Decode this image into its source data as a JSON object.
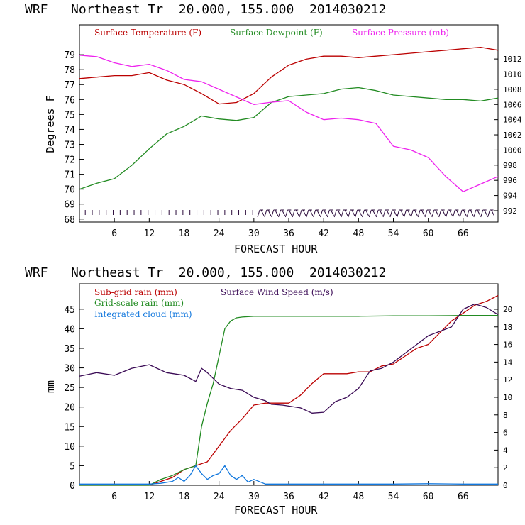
{
  "chart_data": [
    {
      "type": "line",
      "title": "WRF   Northeast Tr  20.000, 155.000  2014030212",
      "xlabel": "FORECAST HOUR",
      "ylabel": "Degrees F",
      "x_ticks": [
        6,
        12,
        18,
        24,
        30,
        36,
        42,
        48,
        54,
        60,
        66
      ],
      "xlim": [
        0,
        72
      ],
      "ylim": [
        67.8,
        81
      ],
      "y_ticks": [
        68,
        69,
        70,
        71,
        72,
        73,
        74,
        75,
        76,
        77,
        78,
        79
      ],
      "y2lim": [
        990.5,
        1016.5
      ],
      "y2_ticks": [
        992,
        994,
        996,
        998,
        1000,
        1002,
        1004,
        1006,
        1008,
        1010,
        1012
      ],
      "grid": false,
      "legend_position": "top",
      "wind_barbs_row": "bottom, at about 68.7 F",
      "series": [
        {
          "name": "Surface Temperature (F)",
          "color": "#bb0000",
          "axis": "left",
          "x": [
            0,
            3,
            6,
            9,
            12,
            15,
            18,
            21,
            24,
            27,
            30,
            33,
            36,
            39,
            42,
            45,
            48,
            51,
            54,
            57,
            60,
            63,
            66,
            69,
            72
          ],
          "y": [
            77.4,
            77.5,
            77.6,
            77.6,
            77.8,
            77.3,
            77.0,
            76.4,
            75.7,
            75.8,
            76.4,
            77.5,
            78.3,
            78.7,
            78.9,
            78.9,
            78.8,
            78.9,
            79.0,
            79.1,
            79.2,
            79.3,
            79.4,
            79.5,
            79.3
          ]
        },
        {
          "name": "Surface Dewpoint (F)",
          "color": "#228B22",
          "axis": "left",
          "x": [
            0,
            3,
            6,
            9,
            12,
            15,
            18,
            21,
            24,
            27,
            30,
            33,
            36,
            39,
            42,
            45,
            48,
            51,
            54,
            57,
            60,
            63,
            66,
            69,
            72
          ],
          "y": [
            70.0,
            70.4,
            70.7,
            71.6,
            72.7,
            73.7,
            74.2,
            74.9,
            74.7,
            74.6,
            74.8,
            75.8,
            76.2,
            76.3,
            76.4,
            76.7,
            76.8,
            76.6,
            76.3,
            76.2,
            76.1,
            76.0,
            76.0,
            75.9,
            76.1
          ]
        },
        {
          "name": "Surface Pressure (mb)",
          "color": "#ee22ee",
          "axis": "right",
          "x": [
            0,
            3,
            6,
            9,
            12,
            15,
            18,
            21,
            24,
            27,
            30,
            33,
            36,
            39,
            42,
            45,
            48,
            51,
            54,
            57,
            60,
            63,
            66,
            69,
            72
          ],
          "y": [
            1012.5,
            1012.3,
            1011.5,
            1011.0,
            1011.3,
            1010.5,
            1009.3,
            1009.0,
            1008.0,
            1007.0,
            1006.0,
            1006.3,
            1006.5,
            1005.0,
            1004.0,
            1004.2,
            1004.0,
            1003.5,
            1000.5,
            1000.0,
            999.0,
            996.5,
            994.5,
            995.5,
            996.5
          ]
        }
      ]
    },
    {
      "type": "line",
      "title": "WRF   Northeast Tr  20.000, 155.000  2014030212",
      "xlabel": "FORECAST HOUR",
      "ylabel": "mm",
      "x_ticks": [
        6,
        12,
        18,
        24,
        30,
        36,
        42,
        48,
        54,
        60,
        66
      ],
      "xlim": [
        0,
        72
      ],
      "ylim": [
        0,
        51.5
      ],
      "y_ticks": [
        0,
        5,
        10,
        15,
        20,
        25,
        30,
        35,
        40,
        45
      ],
      "y2lim": [
        0,
        22.9
      ],
      "y2_ticks": [
        0,
        2,
        4,
        6,
        8,
        10,
        12,
        14,
        16,
        18,
        20
      ],
      "grid": false,
      "legend_position": "top-left",
      "series": [
        {
          "name": "Sub-grid rain (mm)",
          "color": "#bb0000",
          "axis": "left",
          "x": [
            0,
            12,
            14,
            16,
            18,
            20,
            22,
            24,
            26,
            28,
            30,
            32,
            36,
            38,
            40,
            42,
            44,
            46,
            48,
            50,
            52,
            54,
            56,
            58,
            60,
            62,
            64,
            66,
            68,
            70,
            72
          ],
          "y": [
            0,
            0,
            1.0,
            2.0,
            4.0,
            5.0,
            6.0,
            10.0,
            14.0,
            17.0,
            20.5,
            21.0,
            21.0,
            23.0,
            26.0,
            28.5,
            28.5,
            28.5,
            29.0,
            29.0,
            30.5,
            31.0,
            33.0,
            35.0,
            36.0,
            39.0,
            42.0,
            44.0,
            46.0,
            47.0,
            48.5
          ]
        },
        {
          "name": "Grid-scale rain (mm)",
          "color": "#228B22",
          "axis": "left",
          "x": [
            0,
            12,
            14,
            16,
            18,
            19,
            20,
            21,
            22,
            23,
            24,
            25,
            26,
            27,
            28,
            30,
            32,
            36,
            42,
            48,
            54,
            60,
            66,
            72
          ],
          "y": [
            0,
            0,
            1.5,
            2.5,
            4.0,
            4.5,
            5.0,
            15.0,
            21.0,
            26.0,
            33.0,
            40.0,
            42.0,
            42.8,
            43.0,
            43.2,
            43.2,
            43.2,
            43.2,
            43.2,
            43.3,
            43.3,
            43.4,
            43.4
          ]
        },
        {
          "name": "Integrated cloud (mm)",
          "color": "#1177dd",
          "axis": "left",
          "x": [
            0,
            12,
            14,
            16,
            17,
            18,
            19,
            20,
            21,
            22,
            23,
            24,
            25,
            26,
            27,
            28,
            29,
            30,
            32,
            36,
            42,
            48,
            54,
            60,
            66,
            72
          ],
          "y": [
            0.3,
            0.3,
            0.5,
            1.0,
            2.0,
            1.0,
            2.5,
            5.0,
            3.0,
            1.5,
            2.5,
            3.0,
            5.0,
            2.5,
            1.5,
            2.5,
            0.8,
            1.5,
            0.3,
            0.3,
            0.3,
            0.3,
            0.3,
            0.4,
            0.3,
            0.3
          ]
        },
        {
          "name": "Surface Wind Speed (m/s)",
          "color": "#3a0a55",
          "axis": "right",
          "x": [
            0,
            3,
            6,
            9,
            12,
            15,
            18,
            20,
            21,
            22,
            24,
            26,
            28,
            30,
            32,
            33,
            35,
            38,
            40,
            42,
            44,
            46,
            48,
            50,
            52,
            54,
            56,
            58,
            60,
            62,
            64,
            66,
            68,
            70,
            72
          ],
          "y": [
            12.4,
            12.8,
            12.5,
            13.3,
            13.7,
            12.8,
            12.5,
            11.8,
            13.3,
            12.8,
            11.5,
            11.0,
            10.8,
            10.0,
            9.6,
            9.2,
            9.1,
            8.8,
            8.2,
            8.3,
            9.5,
            10.0,
            11.0,
            13.0,
            13.3,
            14.0,
            15.0,
            16.0,
            17.0,
            17.5,
            18.0,
            20.0,
            20.6,
            20.2,
            19.4
          ]
        }
      ]
    }
  ]
}
